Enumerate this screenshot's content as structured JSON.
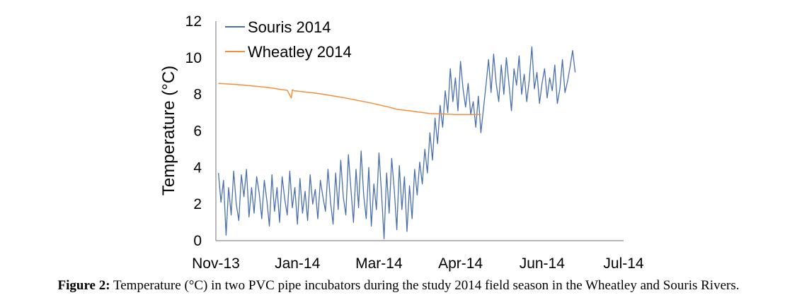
{
  "chart_data": {
    "type": "line",
    "title": "",
    "xlabel": "",
    "ylabel": "Temperature (°C)",
    "ylim": [
      0,
      12
    ],
    "yticks": [
      0,
      2,
      4,
      6,
      8,
      10,
      12
    ],
    "xlim": [
      0,
      8
    ],
    "xticks": [
      "Nov-13",
      "Jan-14",
      "Mar-14",
      "Apr-14",
      "Jun-14",
      "Jul-14"
    ],
    "legend_position": "top-left",
    "series": [
      {
        "name": "Souris 2014",
        "color": "#4a6fae",
        "x": [
          0.05,
          0.1,
          0.15,
          0.2,
          0.25,
          0.3,
          0.35,
          0.4,
          0.45,
          0.5,
          0.55,
          0.6,
          0.65,
          0.7,
          0.75,
          0.8,
          0.85,
          0.9,
          0.95,
          1.0,
          1.05,
          1.1,
          1.15,
          1.2,
          1.25,
          1.3,
          1.35,
          1.4,
          1.45,
          1.5,
          1.55,
          1.6,
          1.65,
          1.7,
          1.75,
          1.8,
          1.85,
          1.9,
          1.95,
          2.0,
          2.05,
          2.1,
          2.15,
          2.2,
          2.25,
          2.3,
          2.35,
          2.4,
          2.45,
          2.5,
          2.55,
          2.6,
          2.65,
          2.7,
          2.75,
          2.8,
          2.85,
          2.9,
          2.95,
          3.0,
          3.05,
          3.1,
          3.15,
          3.2,
          3.25,
          3.3,
          3.35,
          3.4,
          3.45,
          3.5,
          3.55,
          3.6,
          3.65,
          3.7,
          3.75,
          3.8,
          3.85,
          3.9,
          3.95,
          4.0,
          4.05,
          4.1,
          4.15,
          4.2,
          4.25,
          4.3,
          4.35,
          4.4,
          4.45,
          4.5,
          4.55,
          4.6,
          4.65,
          4.7,
          4.75,
          4.8,
          4.85,
          4.9,
          4.95,
          5.0,
          5.05,
          5.1,
          5.15,
          5.2,
          5.25,
          5.3,
          5.35,
          5.4,
          5.45,
          5.5,
          5.55,
          5.6,
          5.65,
          5.7,
          5.75,
          5.8,
          5.85,
          5.9,
          5.95,
          6.0,
          6.05,
          6.1,
          6.15,
          6.2,
          6.25,
          6.3,
          6.35,
          6.4,
          6.45,
          6.5,
          6.55,
          6.6,
          6.65,
          6.7,
          6.75,
          6.8,
          6.85,
          6.9,
          6.95,
          7.0,
          7.05
        ],
        "values": [
          3.7,
          2.1,
          3.3,
          0.3,
          2.9,
          1.4,
          3.8,
          2.0,
          1.1,
          3.6,
          2.4,
          3.9,
          1.3,
          2.9,
          1.5,
          3.5,
          2.6,
          1.2,
          3.3,
          2.2,
          0.8,
          3.6,
          1.6,
          2.9,
          1.0,
          3.5,
          2.3,
          1.4,
          3.8,
          1.8,
          2.9,
          0.9,
          3.4,
          1.5,
          2.7,
          1.1,
          3.6,
          2.0,
          2.8,
          1.2,
          3.3,
          2.4,
          1.6,
          3.9,
          2.1,
          0.9,
          3.7,
          1.7,
          4.4,
          2.4,
          1.4,
          4.7,
          2.8,
          1.0,
          3.9,
          1.8,
          4.9,
          2.5,
          1.2,
          4.0,
          0.8,
          3.1,
          1.7,
          4.8,
          2.6,
          0.1,
          3.7,
          1.5,
          4.5,
          2.8,
          0.6,
          4.1,
          1.7,
          3.5,
          0.5,
          3.0,
          1.2,
          3.9,
          2.5,
          4.3,
          3.1,
          5.0,
          3.7,
          5.9,
          4.4,
          6.7,
          5.3,
          7.4,
          6.2,
          8.2,
          7.0,
          9.4,
          7.6,
          8.9,
          7.1,
          9.8,
          8.3,
          7.3,
          8.6,
          6.9,
          7.6,
          6.2,
          7.9,
          5.9,
          7.2,
          8.5,
          9.9,
          8.1,
          10.2,
          8.6,
          7.6,
          9.6,
          8.0,
          10.0,
          8.6,
          7.1,
          9.4,
          8.5,
          10.1,
          8.0,
          9.1,
          7.6,
          8.8,
          10.6,
          8.3,
          9.2,
          7.5,
          8.6,
          9.4,
          7.8,
          8.9,
          8.2,
          9.6,
          7.5,
          8.3,
          9.9,
          8.1,
          8.7,
          9.5,
          10.4,
          9.2
        ],
        "stroke_width": 1.3
      },
      {
        "name": "Wheatley 2014",
        "color": "#f28e3c",
        "x": [
          0.05,
          0.5,
          1.0,
          1.4,
          1.48,
          1.5,
          1.53,
          2.0,
          2.5,
          3.0,
          3.4,
          3.55,
          3.65,
          3.8,
          4.2,
          4.7,
          5.2
        ],
        "values": [
          8.6,
          8.52,
          8.38,
          8.22,
          7.8,
          8.25,
          8.2,
          8.05,
          7.82,
          7.55,
          7.3,
          7.18,
          7.15,
          7.1,
          6.95,
          6.9,
          6.9
        ],
        "stroke_width": 1.5
      }
    ]
  },
  "caption": {
    "lead": "Figure 2:",
    "text": " Temperature (°C) in two PVC pipe incubators during the study 2014 field season in the Wheatley and Souris Rivers."
  }
}
